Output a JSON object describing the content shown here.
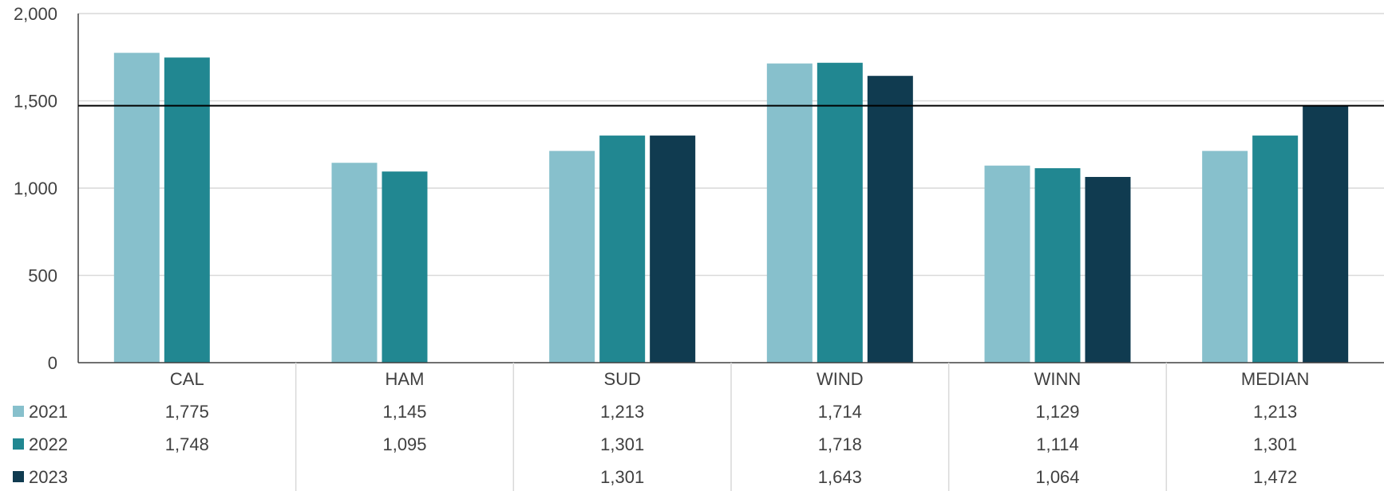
{
  "chart_data": {
    "type": "bar",
    "categories": [
      "CAL",
      "HAM",
      "SUD",
      "WIND",
      "WINN",
      "MEDIAN"
    ],
    "series": [
      {
        "name": "2021",
        "values": [
          1775,
          1145,
          1213,
          1714,
          1129,
          1213
        ],
        "labels": [
          "1,775",
          "1,145",
          "1,213",
          "1,714",
          "1,129",
          "1,213"
        ],
        "color": "#87c0cc"
      },
      {
        "name": "2022",
        "values": [
          1748,
          1095,
          1301,
          1718,
          1114,
          1301
        ],
        "labels": [
          "1,748",
          "1,095",
          "1,301",
          "1,718",
          "1,114",
          "1,301"
        ],
        "color": "#218791"
      },
      {
        "name": "2023",
        "values": [
          null,
          null,
          1301,
          1643,
          1064,
          1472
        ],
        "labels": [
          "",
          "",
          "1,301",
          "1,643",
          "1,064",
          "1,472"
        ],
        "color": "#103b50"
      }
    ],
    "ylim": [
      0,
      2000
    ],
    "yticks": [
      0,
      500,
      1000,
      1500,
      2000
    ],
    "ytick_labels": [
      "0",
      "500",
      "1,000",
      "1,500",
      "2,000"
    ],
    "reference_line": 1472,
    "reference_line_color": "#000000",
    "grid": true,
    "grid_color": "#d9d9d9",
    "data_table": true,
    "title": "",
    "xlabel": "",
    "ylabel": ""
  }
}
